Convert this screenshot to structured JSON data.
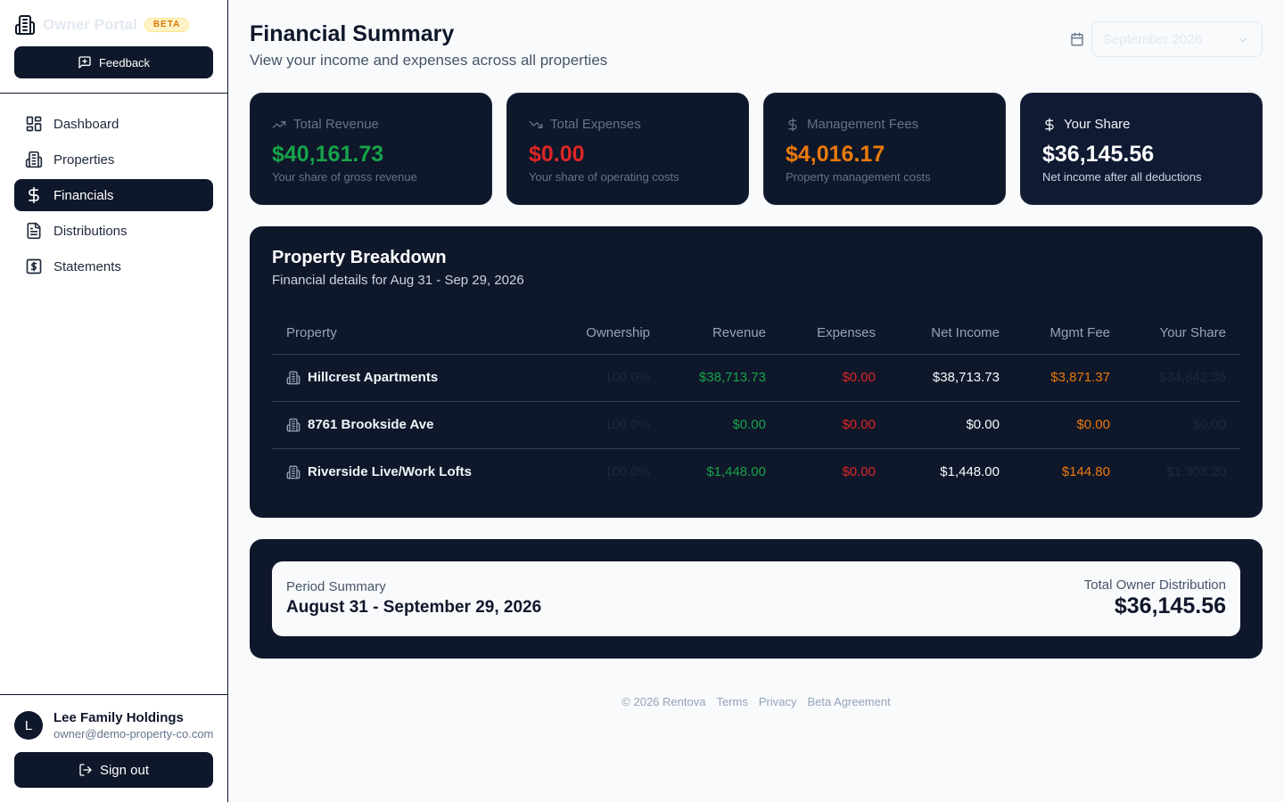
{
  "sidebar": {
    "brand": {
      "name": "Owner Portal",
      "badge": "BETA",
      "icon": "building-icon"
    },
    "feedback_label": "Feedback",
    "items": [
      {
        "label": "Dashboard",
        "icon": "grid-icon"
      },
      {
        "label": "Properties",
        "icon": "building-icon"
      },
      {
        "label": "Financials",
        "icon": "dollar-icon",
        "active": true
      },
      {
        "label": "Distributions",
        "icon": "file-icon"
      },
      {
        "label": "Statements",
        "icon": "receipt-icon"
      }
    ],
    "user": {
      "initial": "L",
      "name": "Lee Family Holdings",
      "email": "owner@demo-property-co.com"
    },
    "signout_label": "Sign out"
  },
  "header": {
    "title": "Financial Summary",
    "subtitle": "View your income and expenses across all properties",
    "month_select": {
      "value": "September 2026",
      "icon": "calendar-icon"
    }
  },
  "stats": [
    {
      "label": "Total Revenue",
      "value": "$40,161.73",
      "note": "Your share of gross revenue",
      "icon": "trending-up-icon",
      "color": "#16a34a"
    },
    {
      "label": "Total Expenses",
      "value": "$0.00",
      "note": "Your share of operating costs",
      "icon": "trending-down-icon",
      "color": "#dc2626"
    },
    {
      "label": "Management Fees",
      "value": "$4,016.17",
      "note": "Property management costs",
      "icon": "dollar-icon",
      "color": "#ea7a0c"
    },
    {
      "label": "Your Share",
      "value": "$36,145.56",
      "note": "Net income after all deductions",
      "icon": "dollar-icon",
      "color": "#ffffff"
    }
  ],
  "breakdown": {
    "title": "Property Breakdown",
    "subtitle": "Financial details for Aug 31 - Sep 29, 2026",
    "columns": [
      "Property",
      "Ownership",
      "Revenue",
      "Expenses",
      "Net Income",
      "Mgmt Fee",
      "Your Share"
    ],
    "rows": [
      {
        "property": "Hillcrest Apartments",
        "ownership": "100.0%",
        "revenue": "$38,713.73",
        "expenses": "$0.00",
        "net_income": "$38,713.73",
        "mgmt_fee": "$3,871.37",
        "your_share": "$34,842.36"
      },
      {
        "property": "8761 Brookside Ave",
        "ownership": "100.0%",
        "revenue": "$0.00",
        "expenses": "$0.00",
        "net_income": "$0.00",
        "mgmt_fee": "$0.00",
        "your_share": "$0.00"
      },
      {
        "property": "Riverside Live/Work Lofts",
        "ownership": "100.0%",
        "revenue": "$1,448.00",
        "expenses": "$0.00",
        "net_income": "$1,448.00",
        "mgmt_fee": "$144.80",
        "your_share": "$1,303.20"
      }
    ]
  },
  "summary": {
    "period_label": "Period Summary",
    "period_value": "August 31 - September 29, 2026",
    "distribution_label": "Total Owner Distribution",
    "distribution_value": "$36,145.56"
  },
  "footer": {
    "copyright": "© 2026 Rentova",
    "links": [
      "Terms",
      "Privacy",
      "Beta Agreement"
    ]
  }
}
